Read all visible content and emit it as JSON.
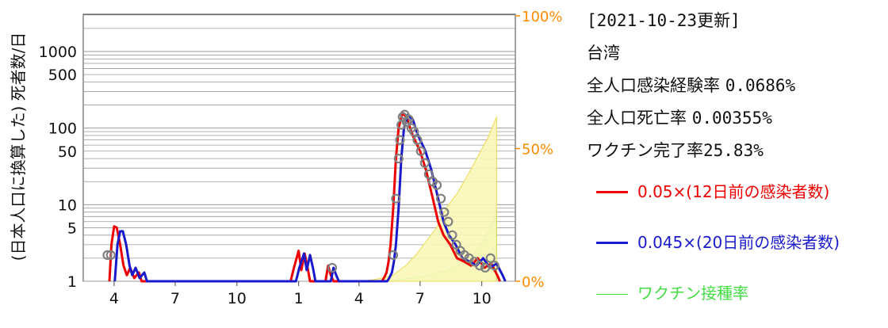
{
  "info": {
    "updated": "[2021-10-23更新]",
    "region": "台湾",
    "infection_rate_label": "全人口感染経験率",
    "infection_rate_value": "0.0686%",
    "death_rate_label": "全人口死亡率",
    "death_rate_value": "0.00355%",
    "vaccine_rate_label": "ワクチン完了率",
    "vaccine_rate_value": "25.83%"
  },
  "legend": [
    {
      "label": "0.05×(12日前の感染者数)",
      "color": "#ee0000"
    },
    {
      "label": "0.045×(20日前の感染者数)",
      "color": "#1a1acc"
    },
    {
      "label": "ワクチン接種率",
      "color": "#44dd44"
    }
  ],
  "chart_data": {
    "type": "line",
    "ylabel": "(日本人口に換算した) 死者数/日",
    "y_scale": "log",
    "ylim": [
      1,
      3000
    ],
    "y_ticks": [
      "1",
      "5",
      "10",
      "50",
      "100",
      "500",
      "1000"
    ],
    "y2_ticks": [
      "0%",
      "50%",
      "100%"
    ],
    "y2lim": [
      0,
      100
    ],
    "x_ticks": [
      "4",
      "7",
      "10",
      "1",
      "4",
      "7",
      "10"
    ],
    "x_tick_months": [
      "2020-04",
      "2020-07",
      "2020-10",
      "2021-01",
      "2021-04",
      "2021-07",
      "2021-10"
    ],
    "xlim": [
      "2020-02-15",
      "2021-11-20"
    ],
    "grid": "horizontal",
    "colors": {
      "red": "#ee0000",
      "blue": "#1a1acc",
      "vaccine": "#44dd44",
      "circle": "#808080",
      "accent": "#ff8c00"
    },
    "series": [
      {
        "name": "0.05×(12日前の感染者数)",
        "axis": "left",
        "x": [
          "2020-03-25",
          "2020-03-28",
          "2020-04-01",
          "2020-04-05",
          "2020-04-10",
          "2020-04-15",
          "2020-04-20",
          "2020-04-25",
          "2020-05-01",
          "2020-05-08",
          "2020-05-12",
          "2020-12-20",
          "2020-12-25",
          "2021-01-01",
          "2021-01-05",
          "2021-01-10",
          "2021-01-15",
          "2021-01-18",
          "2021-02-10",
          "2021-02-14",
          "2021-02-18",
          "2021-02-22",
          "2021-05-05",
          "2021-05-08",
          "2021-05-12",
          "2021-05-15",
          "2021-05-18",
          "2021-05-22",
          "2021-05-26",
          "2021-05-30",
          "2021-06-05",
          "2021-06-12",
          "2021-06-20",
          "2021-07-01",
          "2021-07-10",
          "2021-07-20",
          "2021-07-28",
          "2021-08-05",
          "2021-08-15",
          "2021-08-25",
          "2021-09-05",
          "2021-09-15",
          "2021-09-25",
          "2021-10-05",
          "2021-10-15",
          "2021-10-20",
          "2021-10-24",
          "2021-10-28"
        ],
        "y": [
          1,
          3,
          5.2,
          5,
          3,
          1.6,
          1.2,
          1.5,
          1.1,
          1.3,
          1,
          1,
          1.5,
          2.5,
          1.4,
          2.3,
          1.4,
          1,
          1,
          1.6,
          1.2,
          1,
          1,
          1.1,
          1.3,
          1.8,
          3,
          9,
          40,
          100,
          160,
          130,
          80,
          50,
          28,
          12,
          6,
          4,
          3,
          2,
          1.8,
          1.6,
          2,
          1.5,
          1.7,
          1.4,
          1.2,
          1
        ]
      },
      {
        "name": "0.045×(20日前の感染者数)",
        "axis": "left",
        "x": [
          "2020-04-02",
          "2020-04-06",
          "2020-04-10",
          "2020-04-14",
          "2020-04-19",
          "2020-04-24",
          "2020-04-28",
          "2020-05-03",
          "2020-05-09",
          "2020-05-16",
          "2020-05-20",
          "2020-12-28",
          "2021-01-02",
          "2021-01-09",
          "2021-01-13",
          "2021-01-18",
          "2021-01-23",
          "2021-01-26",
          "2021-02-18",
          "2021-02-22",
          "2021-02-26",
          "2021-03-02",
          "2021-05-13",
          "2021-05-16",
          "2021-05-20",
          "2021-05-23",
          "2021-05-26",
          "2021-05-30",
          "2021-06-03",
          "2021-06-07",
          "2021-06-13",
          "2021-06-20",
          "2021-06-28",
          "2021-07-09",
          "2021-07-18",
          "2021-07-28",
          "2021-08-05",
          "2021-08-13",
          "2021-08-23",
          "2021-09-02",
          "2021-09-13",
          "2021-09-23",
          "2021-10-03",
          "2021-10-13",
          "2021-10-23",
          "2021-10-28",
          "2021-11-01",
          "2021-11-05"
        ],
        "y": [
          1,
          3,
          4.5,
          4.5,
          3,
          1.6,
          1.2,
          1.5,
          1.1,
          1.3,
          1,
          1,
          1.5,
          2.3,
          1.4,
          2.2,
          1.4,
          1,
          1,
          1.5,
          1.2,
          1,
          1,
          1.1,
          1.3,
          1.8,
          3,
          9,
          40,
          100,
          150,
          130,
          80,
          50,
          28,
          12,
          6,
          4,
          3,
          2,
          1.8,
          1.6,
          2,
          1.5,
          1.7,
          1.4,
          1.2,
          1
        ]
      },
      {
        "name": "",
        "axis": "left",
        "kind": "scatter",
        "x": [
          "2020-03-22",
          "2020-03-27",
          "2021-02-20",
          "2021-05-22",
          "2021-05-26",
          "2021-05-30",
          "2021-06-01",
          "2021-06-03",
          "2021-06-05",
          "2021-06-08",
          "2021-06-11",
          "2021-06-14",
          "2021-06-18",
          "2021-06-22",
          "2021-06-27",
          "2021-07-02",
          "2021-07-08",
          "2021-07-14",
          "2021-07-20",
          "2021-07-26",
          "2021-08-01",
          "2021-08-06",
          "2021-08-12",
          "2021-08-18",
          "2021-08-24",
          "2021-08-30",
          "2021-09-05",
          "2021-09-12",
          "2021-09-20",
          "2021-09-28",
          "2021-10-06",
          "2021-10-14",
          "2021-10-20"
        ],
        "y": [
          2.2,
          2.2,
          1.5,
          2.2,
          12,
          40,
          70,
          110,
          140,
          150,
          120,
          130,
          100,
          90,
          70,
          50,
          35,
          25,
          20,
          18,
          12,
          8,
          6,
          4,
          3,
          2.5,
          2.2,
          2,
          1.8,
          1.6,
          1.5,
          2,
          1.6
        ]
      },
      {
        "name": "ワクチン接種率",
        "axis": "right",
        "kind": "area",
        "x": [
          "2021-03-22",
          "2021-04-20",
          "2021-05-20",
          "2021-06-10",
          "2021-06-25",
          "2021-07-10",
          "2021-07-25",
          "2021-08-10",
          "2021-08-25",
          "2021-09-10",
          "2021-09-25",
          "2021-10-10",
          "2021-10-23"
        ],
        "y": [
          0,
          0,
          0.3,
          1,
          1.5,
          2,
          3,
          4,
          6,
          8,
          12,
          18,
          26
        ]
      },
      {
        "name": "",
        "axis": "right",
        "kind": "area",
        "fill": "light-yellow",
        "x": [
          "2021-03-22",
          "2021-04-20",
          "2021-05-20",
          "2021-06-10",
          "2021-06-25",
          "2021-07-10",
          "2021-07-25",
          "2021-08-10",
          "2021-08-25",
          "2021-09-10",
          "2021-09-25",
          "2021-10-10",
          "2021-10-23"
        ],
        "y": [
          0,
          0.5,
          2,
          6,
          10,
          15,
          20,
          28,
          33,
          40,
          47,
          54,
          62
        ]
      }
    ]
  }
}
